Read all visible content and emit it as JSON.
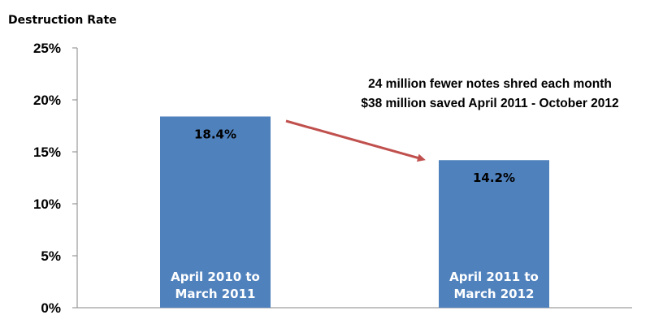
{
  "chart_data": {
    "type": "bar",
    "title": "",
    "ylabel": "Destruction Rate",
    "xlabel": "",
    "ylim": [
      0,
      25
    ],
    "yticks": [
      "0%",
      "5%",
      "10%",
      "15%",
      "20%",
      "25%"
    ],
    "categories": [
      [
        "April 2010 to",
        "March 2011"
      ],
      [
        "April 2011 to",
        "March 2012"
      ]
    ],
    "values": [
      18.4,
      14.2
    ],
    "data_labels": [
      "18.4%",
      "14.2%"
    ],
    "bar_color": "#4f81bd",
    "grid": false,
    "annotations": {
      "lines": [
        "24 million fewer notes shred each month",
        "$38 million saved April 2011 - October 2012"
      ],
      "arrow_color": "#c0504d"
    }
  }
}
